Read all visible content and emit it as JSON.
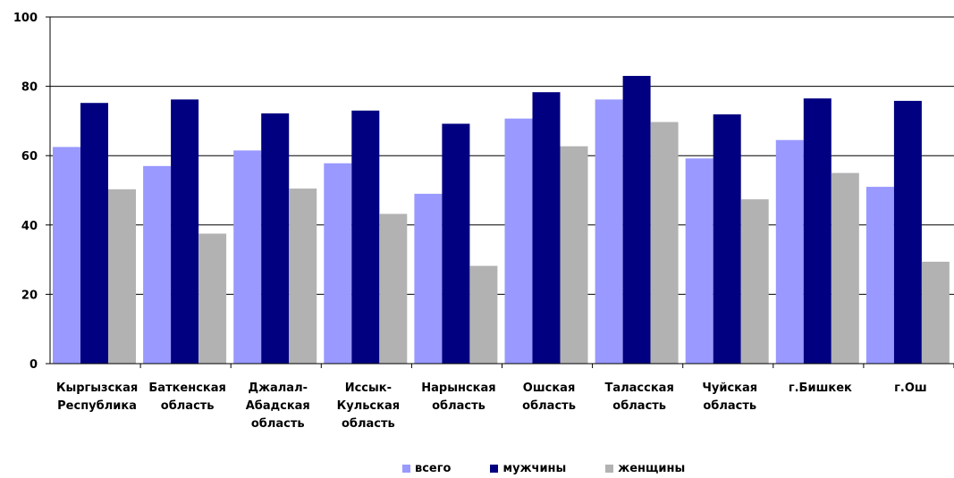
{
  "chart_data": {
    "type": "bar",
    "title": "",
    "xlabel": "",
    "ylabel": "",
    "ylim": [
      0,
      100
    ],
    "yticks": [
      "0",
      "20",
      "40",
      "60",
      "80",
      "100"
    ],
    "grid": true,
    "legend_position": "bottom",
    "categories": [
      [
        "Кыргызская",
        "Республика"
      ],
      [
        "Баткенская",
        "область"
      ],
      [
        "Джалал-",
        "Абадская",
        "область"
      ],
      [
        "Иссык-",
        "Кульская",
        "область"
      ],
      [
        "Нарынская",
        "область"
      ],
      [
        "Ошская",
        "область"
      ],
      [
        "Таласская",
        "область"
      ],
      [
        "Чуйская",
        "область"
      ],
      [
        "г.Бишкек"
      ],
      [
        "г.Ош"
      ]
    ],
    "series": [
      {
        "name": "всего",
        "color": "#9999ff",
        "values": [
          62.5,
          57,
          61.5,
          57.8,
          49,
          70.7,
          76.2,
          59.2,
          64.5,
          51
        ]
      },
      {
        "name": "мужчины",
        "color": "#000080",
        "values": [
          75.2,
          76.2,
          72.2,
          73,
          69.2,
          78.3,
          83,
          71.9,
          76.5,
          75.8
        ]
      },
      {
        "name": "женщины",
        "color": "#b2b2b2",
        "values": [
          50.3,
          37.5,
          50.5,
          43.2,
          28.2,
          62.7,
          69.7,
          47.4,
          55,
          29.4
        ]
      }
    ]
  }
}
